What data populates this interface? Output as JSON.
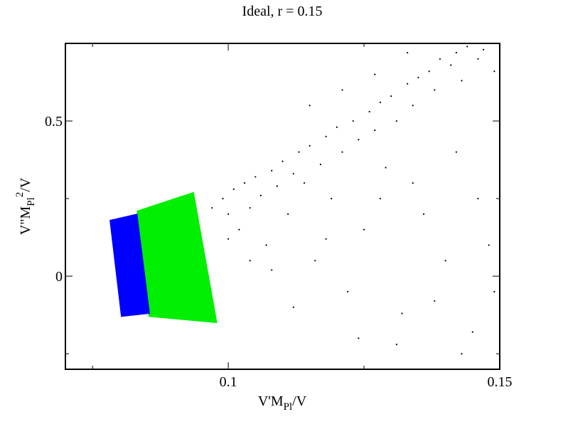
{
  "chart_data": {
    "type": "scatter",
    "title": "Ideal, r = 0.15",
    "xlabel": {
      "main": "V'M",
      "sub": "Pl",
      "tail": "/V"
    },
    "ylabel": {
      "main": "V\"M",
      "sub": "Pl",
      "sup": "2",
      "tail": "/V"
    },
    "xlim": [
      0.07,
      0.15
    ],
    "ylim": [
      -0.3,
      0.75
    ],
    "xticks": [
      0.1,
      0.15
    ],
    "yticks": [
      0,
      0.5
    ],
    "xminor": [
      0.075,
      0.125
    ],
    "yminor": [
      -0.25,
      0.25
    ],
    "series": [
      {
        "color": "#000000",
        "marker": "dot",
        "x": [
          0.097,
          0.099,
          0.1,
          0.101,
          0.102,
          0.103,
          0.104,
          0.105,
          0.106,
          0.107,
          0.108,
          0.109,
          0.11,
          0.111,
          0.112,
          0.113,
          0.114,
          0.115,
          0.116,
          0.117,
          0.118,
          0.119,
          0.12,
          0.121,
          0.122,
          0.123,
          0.124,
          0.125,
          0.126,
          0.127,
          0.128,
          0.129,
          0.13,
          0.131,
          0.132,
          0.133,
          0.134,
          0.135,
          0.136,
          0.137,
          0.138,
          0.139,
          0.14,
          0.141,
          0.142,
          0.143,
          0.144,
          0.145,
          0.146,
          0.147,
          0.148,
          0.149,
          0.15,
          0.108,
          0.112,
          0.118,
          0.124,
          0.128,
          0.134,
          0.138,
          0.142,
          0.146,
          0.149,
          0.131,
          0.143,
          0.1,
          0.104,
          0.115,
          0.121,
          0.127,
          0.133
        ],
        "y": [
          0.22,
          0.25,
          0.2,
          0.28,
          0.15,
          0.3,
          0.22,
          0.32,
          0.26,
          0.1,
          0.34,
          0.29,
          0.37,
          0.2,
          0.33,
          0.4,
          0.3,
          0.42,
          0.05,
          0.36,
          0.45,
          0.25,
          0.48,
          0.4,
          -0.05,
          0.5,
          0.44,
          0.15,
          0.53,
          0.47,
          0.56,
          0.35,
          0.58,
          0.5,
          -0.12,
          0.62,
          0.55,
          0.64,
          0.2,
          0.66,
          0.6,
          0.7,
          0.05,
          0.68,
          0.72,
          0.63,
          0.74,
          -0.18,
          0.7,
          0.73,
          0.1,
          0.66,
          0.72,
          0.02,
          -0.1,
          0.12,
          -0.2,
          0.25,
          0.3,
          -0.08,
          0.4,
          0.25,
          -0.05,
          -0.22,
          -0.25,
          0.12,
          0.05,
          0.55,
          0.6,
          0.65,
          0.72
        ]
      },
      {
        "color": "#00ee00",
        "marker": "region",
        "x": [
          0.0832,
          0.0936,
          0.0979,
          0.0854
        ],
        "y": [
          0.21,
          0.27,
          -0.15,
          -0.13
        ]
      },
      {
        "color": "#0000ff",
        "marker": "region",
        "x": [
          0.0782,
          0.0832,
          0.0855,
          0.0803
        ],
        "y": [
          0.18,
          0.2,
          -0.12,
          -0.13
        ]
      }
    ]
  }
}
